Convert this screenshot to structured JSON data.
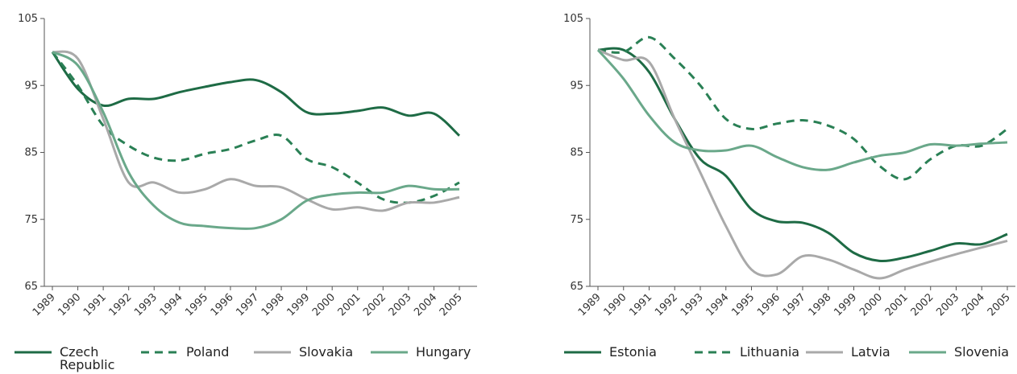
{
  "chart_data": [
    {
      "type": "line",
      "categories": [
        "1989",
        "1990",
        "1991",
        "1992",
        "1993",
        "1994",
        "1995",
        "1996",
        "1997",
        "1998",
        "1999",
        "2000",
        "2001",
        "2002",
        "2003",
        "2004",
        "2005"
      ],
      "ylim": [
        65,
        105
      ],
      "yticks": [
        65,
        75,
        85,
        95,
        105
      ],
      "legend": "bottom",
      "series": [
        {
          "name": "Czech Republic",
          "color": "#1e6b45",
          "dash": false,
          "values": [
            100,
            94.5,
            92,
            93,
            93,
            94,
            94.8,
            95.5,
            95.8,
            94,
            91,
            90.8,
            91.2,
            91.7,
            90.5,
            90.8,
            87.5
          ]
        },
        {
          "name": "Poland",
          "color": "#2a8055",
          "dash": true,
          "values": [
            100,
            95,
            89,
            86,
            84.2,
            83.8,
            84.8,
            85.5,
            86.8,
            87.5,
            84,
            82.8,
            80.5,
            78,
            77.5,
            78.5,
            80.5
          ]
        },
        {
          "name": "Slovakia",
          "color": "#a9a9a9",
          "dash": false,
          "values": [
            100,
            99,
            90,
            80.5,
            80.5,
            79,
            79.5,
            81,
            80,
            79.8,
            78,
            76.5,
            76.8,
            76.3,
            77.5,
            77.5,
            78.3
          ]
        },
        {
          "name": "Hungary",
          "color": "#6aa88a",
          "dash": false,
          "values": [
            100,
            98,
            91,
            82,
            77,
            74.5,
            74,
            73.7,
            73.7,
            75,
            77.8,
            78.7,
            79,
            79,
            80,
            79.5,
            79.5
          ]
        }
      ]
    },
    {
      "type": "line",
      "categories": [
        "1989",
        "1990",
        "1991",
        "1992",
        "1993",
        "1994",
        "1995",
        "1996",
        "1997",
        "1998",
        "1999",
        "2000",
        "2001",
        "2002",
        "2003",
        "2004",
        "2005"
      ],
      "ylim": [
        65,
        105
      ],
      "yticks": [
        65,
        75,
        85,
        95,
        105
      ],
      "legend": "bottom",
      "series": [
        {
          "name": "Estonia",
          "color": "#1e6b45",
          "dash": false,
          "values": [
            100.3,
            100.3,
            97,
            90,
            84,
            81.5,
            76.5,
            74.7,
            74.5,
            73,
            70,
            68.8,
            69.3,
            70.3,
            71.4,
            71.3,
            72.8
          ]
        },
        {
          "name": "Lithuania",
          "color": "#2a8055",
          "dash": true,
          "values": [
            100.3,
            100,
            102.2,
            99,
            95,
            90,
            88.5,
            89.3,
            89.8,
            89,
            87,
            83,
            81,
            84,
            86,
            86,
            88.5
          ]
        },
        {
          "name": "Latvia",
          "color": "#a9a9a9",
          "dash": false,
          "values": [
            100.3,
            98.8,
            98.5,
            90,
            82,
            74,
            67.5,
            66.8,
            69.5,
            69,
            67.5,
            66.2,
            67.5,
            68.7,
            69.8,
            70.8,
            71.8
          ]
        },
        {
          "name": "Slovenia",
          "color": "#6aa88a",
          "dash": false,
          "values": [
            100.3,
            96,
            90.5,
            86.5,
            85.3,
            85.3,
            86,
            84.3,
            82.8,
            82.4,
            83.5,
            84.5,
            85,
            86.2,
            86,
            86.3,
            86.5
          ]
        }
      ]
    }
  ]
}
